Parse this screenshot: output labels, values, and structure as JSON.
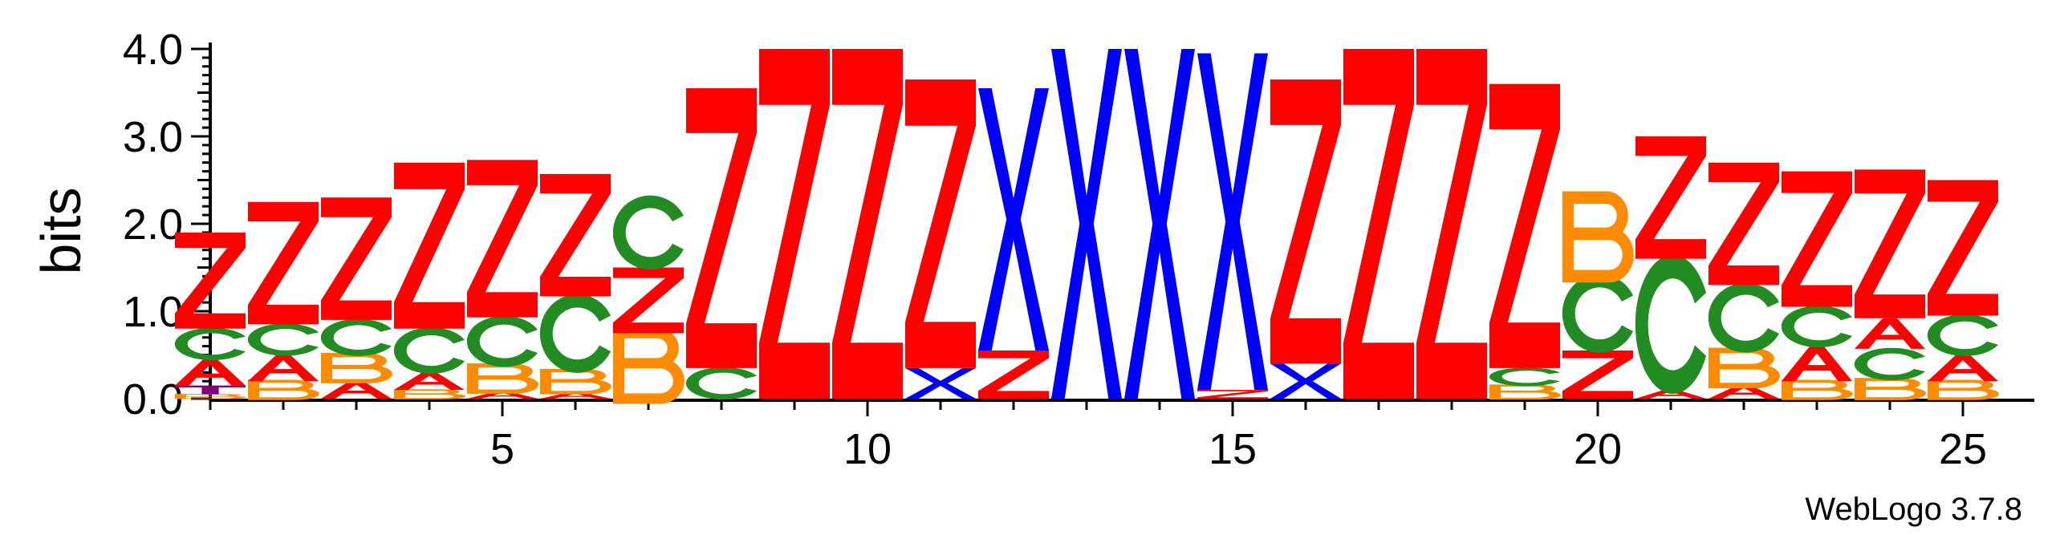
{
  "chart_data": {
    "type": "sequence-logo",
    "ylabel": "bits",
    "ylim": [
      0,
      4.0
    ],
    "yticks": [
      "0.0",
      "1.0",
      "2.0",
      "3.0",
      "4.0"
    ],
    "xticks": [
      5,
      10,
      15,
      20,
      25
    ],
    "footer": "WebLogo 3.7.8",
    "colors": {
      "Z": "#ff0000",
      "X": "#0000ff",
      "C": "#228b22",
      "B": "#ff8c00",
      "A": "#ff0000",
      "T": "#800080"
    },
    "columns": [
      {
        "position": 1,
        "letters": [
          {
            "l": "B",
            "h": 0.05
          },
          {
            "l": "T",
            "h": 0.1
          },
          {
            "l": "A",
            "h": 0.3
          },
          {
            "l": "C",
            "h": 0.35
          },
          {
            "l": "Z",
            "h": 1.1
          }
        ]
      },
      {
        "position": 2,
        "letters": [
          {
            "l": "B",
            "h": 0.2
          },
          {
            "l": "A",
            "h": 0.3
          },
          {
            "l": "C",
            "h": 0.35
          },
          {
            "l": "Z",
            "h": 1.4
          }
        ]
      },
      {
        "position": 3,
        "letters": [
          {
            "l": "A",
            "h": 0.2
          },
          {
            "l": "B",
            "h": 0.3
          },
          {
            "l": "C",
            "h": 0.4
          },
          {
            "l": "Z",
            "h": 1.4
          }
        ]
      },
      {
        "position": 4,
        "letters": [
          {
            "l": "B",
            "h": 0.1
          },
          {
            "l": "A",
            "h": 0.2
          },
          {
            "l": "C",
            "h": 0.5
          },
          {
            "l": "Z",
            "h": 1.9
          }
        ]
      },
      {
        "position": 5,
        "letters": [
          {
            "l": "A",
            "h": 0.08
          },
          {
            "l": "B",
            "h": 0.3
          },
          {
            "l": "C",
            "h": 0.55
          },
          {
            "l": "Z",
            "h": 1.8
          }
        ]
      },
      {
        "position": 6,
        "letters": [
          {
            "l": "A",
            "h": 0.07
          },
          {
            "l": "B",
            "h": 0.25
          },
          {
            "l": "C",
            "h": 0.85
          },
          {
            "l": "Z",
            "h": 1.4
          }
        ]
      },
      {
        "position": 7,
        "letters": [
          {
            "l": "B",
            "h": 0.75
          },
          {
            "l": "Z",
            "h": 0.75
          },
          {
            "l": "C",
            "h": 0.8
          }
        ]
      },
      {
        "position": 8,
        "letters": [
          {
            "l": "C",
            "h": 0.35
          },
          {
            "l": "Z",
            "h": 3.2
          }
        ]
      },
      {
        "position": 9,
        "letters": [
          {
            "l": "Z",
            "h": 4.0
          }
        ]
      },
      {
        "position": 10,
        "letters": [
          {
            "l": "Z",
            "h": 4.0
          }
        ]
      },
      {
        "position": 11,
        "letters": [
          {
            "l": "X",
            "h": 0.35
          },
          {
            "l": "Z",
            "h": 3.3
          }
        ]
      },
      {
        "position": 12,
        "letters": [
          {
            "l": "Z",
            "h": 0.55
          },
          {
            "l": "X",
            "h": 3.0
          }
        ]
      },
      {
        "position": 13,
        "letters": [
          {
            "l": "X",
            "h": 4.0
          }
        ]
      },
      {
        "position": 14,
        "letters": [
          {
            "l": "X",
            "h": 4.0
          }
        ]
      },
      {
        "position": 15,
        "letters": [
          {
            "l": "Z",
            "h": 0.1
          },
          {
            "l": "X",
            "h": 3.85
          }
        ]
      },
      {
        "position": 16,
        "letters": [
          {
            "l": "X",
            "h": 0.4
          },
          {
            "l": "Z",
            "h": 3.25
          }
        ]
      },
      {
        "position": 17,
        "letters": [
          {
            "l": "Z",
            "h": 4.0
          }
        ]
      },
      {
        "position": 18,
        "letters": [
          {
            "l": "Z",
            "h": 4.0
          }
        ]
      },
      {
        "position": 19,
        "letters": [
          {
            "l": "B",
            "h": 0.15
          },
          {
            "l": "C",
            "h": 0.2
          },
          {
            "l": "Z",
            "h": 3.25
          }
        ]
      },
      {
        "position": 20,
        "letters": [
          {
            "l": "Z",
            "h": 0.55
          },
          {
            "l": "C",
            "h": 0.85
          },
          {
            "l": "B",
            "h": 0.9
          }
        ]
      },
      {
        "position": 21,
        "letters": [
          {
            "l": "A",
            "h": 0.1
          },
          {
            "l": "C",
            "h": 1.5
          },
          {
            "l": "Z",
            "h": 1.4
          }
        ]
      },
      {
        "position": 22,
        "letters": [
          {
            "l": "A",
            "h": 0.15
          },
          {
            "l": "B",
            "h": 0.4
          },
          {
            "l": "C",
            "h": 0.75
          },
          {
            "l": "Z",
            "h": 1.4
          }
        ]
      },
      {
        "position": 23,
        "letters": [
          {
            "l": "B",
            "h": 0.2
          },
          {
            "l": "A",
            "h": 0.4
          },
          {
            "l": "C",
            "h": 0.45
          },
          {
            "l": "Z",
            "h": 1.55
          }
        ]
      },
      {
        "position": 24,
        "letters": [
          {
            "l": "B",
            "h": 0.22
          },
          {
            "l": "C",
            "h": 0.35
          },
          {
            "l": "A",
            "h": 0.35
          },
          {
            "l": "Z",
            "h": 1.7
          }
        ]
      },
      {
        "position": 25,
        "letters": [
          {
            "l": "B",
            "h": 0.2
          },
          {
            "l": "A",
            "h": 0.3
          },
          {
            "l": "C",
            "h": 0.45
          },
          {
            "l": "Z",
            "h": 1.55
          }
        ]
      }
    ]
  }
}
